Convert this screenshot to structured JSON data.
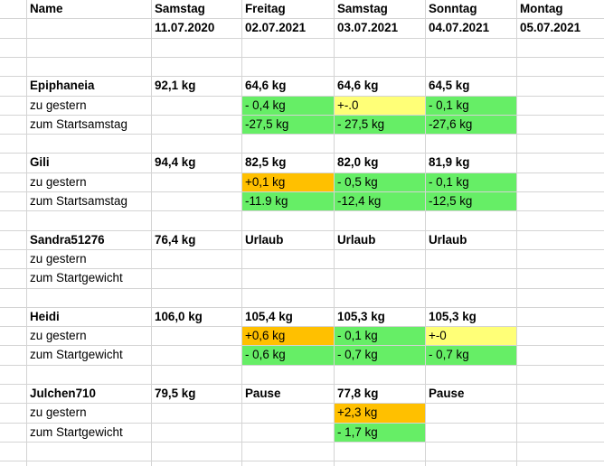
{
  "header": {
    "name_label": "Name",
    "days": [
      {
        "weekday": "Samstag",
        "date": "11.07.2020"
      },
      {
        "weekday": "Freitag",
        "date": "02.07.2021"
      },
      {
        "weekday": "Samstag",
        "date": "03.07.2021"
      },
      {
        "weekday": "Sonntag",
        "date": "04.07.2021"
      },
      {
        "weekday": "Montag",
        "date": "05.07.2021"
      }
    ]
  },
  "colors": {
    "gridline": "#d4d4d4",
    "green": "#66ee66",
    "yellow": "#ffff77",
    "orange": "#ffc000"
  },
  "participants": [
    {
      "name": "Epiphaneia",
      "start": "92,1 kg",
      "weights": [
        "64,6 kg",
        "64,6 kg",
        "64,5 kg"
      ],
      "rows": [
        {
          "label": "zu gestern",
          "values": [
            {
              "text": "- 0,4 kg",
              "color": "green"
            },
            {
              "text": "+-.0",
              "color": "yellow"
            },
            {
              "text": "- 0,1 kg",
              "color": "green"
            }
          ]
        },
        {
          "label": "zum Startsamstag",
          "values": [
            {
              "text": "-27,5 kg",
              "color": "green"
            },
            {
              "text": "- 27,5 kg",
              "color": "green"
            },
            {
              "text": "-27,6 kg",
              "color": "green"
            }
          ]
        }
      ]
    },
    {
      "name": "Gili",
      "start": "94,4 kg",
      "weights": [
        "82,5 kg",
        "82,0 kg",
        "81,9 kg"
      ],
      "rows": [
        {
          "label": "zu gestern",
          "values": [
            {
              "text": "+0,1 kg",
              "color": "orange"
            },
            {
              "text": "- 0,5 kg",
              "color": "green"
            },
            {
              "text": "- 0,1 kg",
              "color": "green"
            }
          ]
        },
        {
          "label": "zum Startsamstag",
          "values": [
            {
              "text": "-11.9 kg",
              "color": "green"
            },
            {
              "text": "-12,4 kg",
              "color": "green"
            },
            {
              "text": "-12,5 kg",
              "color": "green"
            }
          ]
        }
      ]
    },
    {
      "name": "Sandra51276",
      "start": "76,4 kg",
      "weights": [
        "Urlaub",
        "Urlaub",
        "Urlaub"
      ],
      "rows": [
        {
          "label": "zu gestern",
          "values": []
        },
        {
          "label": "zum Startgewicht",
          "values": []
        }
      ]
    },
    {
      "name": "Heidi",
      "start": "106,0 kg",
      "weights": [
        "105,4 kg",
        "105,3 kg",
        "105,3 kg"
      ],
      "rows": [
        {
          "label": "zu gestern",
          "values": [
            {
              "text": "+0,6 kg",
              "color": "orange"
            },
            {
              "text": "- 0,1 kg",
              "color": "green"
            },
            {
              "text": "+-0",
              "color": "yellow"
            }
          ]
        },
        {
          "label": "zum Startgewicht",
          "values": [
            {
              "text": "- 0,6 kg",
              "color": "green"
            },
            {
              "text": "- 0,7 kg",
              "color": "green"
            },
            {
              "text": "- 0,7 kg",
              "color": "green"
            }
          ]
        }
      ]
    },
    {
      "name": "Julchen710",
      "start": "79,5 kg",
      "weights": [
        "Pause",
        "77,8 kg",
        "Pause"
      ],
      "rows": [
        {
          "label": "zu gestern",
          "values": [
            {
              "text": "",
              "color": ""
            },
            {
              "text": "+2,3 kg",
              "color": "orange"
            },
            {
              "text": "",
              "color": ""
            }
          ]
        },
        {
          "label": "zum Startgewicht",
          "values": [
            {
              "text": "",
              "color": ""
            },
            {
              "text": "- 1,7 kg",
              "color": "green"
            },
            {
              "text": "",
              "color": ""
            }
          ]
        }
      ]
    }
  ]
}
